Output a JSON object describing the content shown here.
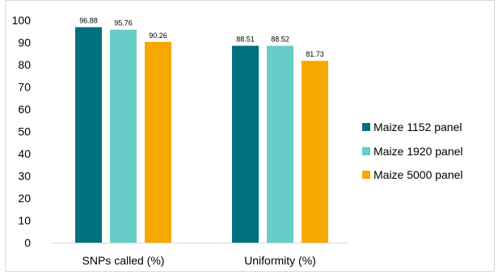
{
  "chart_data": {
    "type": "bar",
    "categories": [
      "SNPs called (%)",
      "Uniformity (%)"
    ],
    "series": [
      {
        "name": "Maize 1152 panel",
        "color": "#00717f",
        "values": [
          96.88,
          88.51
        ]
      },
      {
        "name": "Maize 1920 panel",
        "color": "#66cdc9",
        "values": [
          95.76,
          88.52
        ]
      },
      {
        "name": "Maize 5000 panel",
        "color": "#f5a800",
        "values": [
          90.26,
          81.73
        ]
      }
    ],
    "data_labels": [
      [
        "96.88",
        "88.51"
      ],
      [
        "95.76",
        "88.52"
      ],
      [
        "90.26",
        "81.73"
      ]
    ],
    "yticks": [
      "0",
      "10",
      "20",
      "30",
      "40",
      "50",
      "60",
      "70",
      "80",
      "90",
      "100"
    ],
    "ylim": [
      0,
      100
    ],
    "grid": false,
    "legend_position": "right"
  }
}
